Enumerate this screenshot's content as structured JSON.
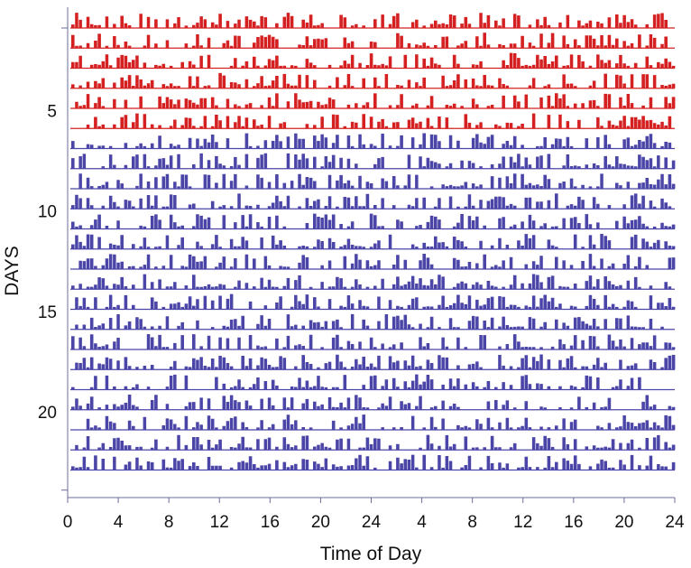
{
  "chart_data": {
    "type": "actogram",
    "xlabel": "Time of Day",
    "ylabel": "DAYS",
    "x_ticks": [
      "0",
      "4",
      "8",
      "12",
      "16",
      "20",
      "24",
      "4",
      "8",
      "12",
      "16",
      "20",
      "24"
    ],
    "y_ticks": [
      "5",
      "10",
      "15",
      "20"
    ],
    "x_range_hours": [
      0,
      48
    ],
    "days": 23,
    "plot": "double-plotted",
    "series": [
      {
        "days": [
          1,
          6
        ],
        "color": "#d42020"
      },
      {
        "days": [
          6,
          23
        ],
        "color": "#4b45a8"
      }
    ],
    "grid": false
  }
}
